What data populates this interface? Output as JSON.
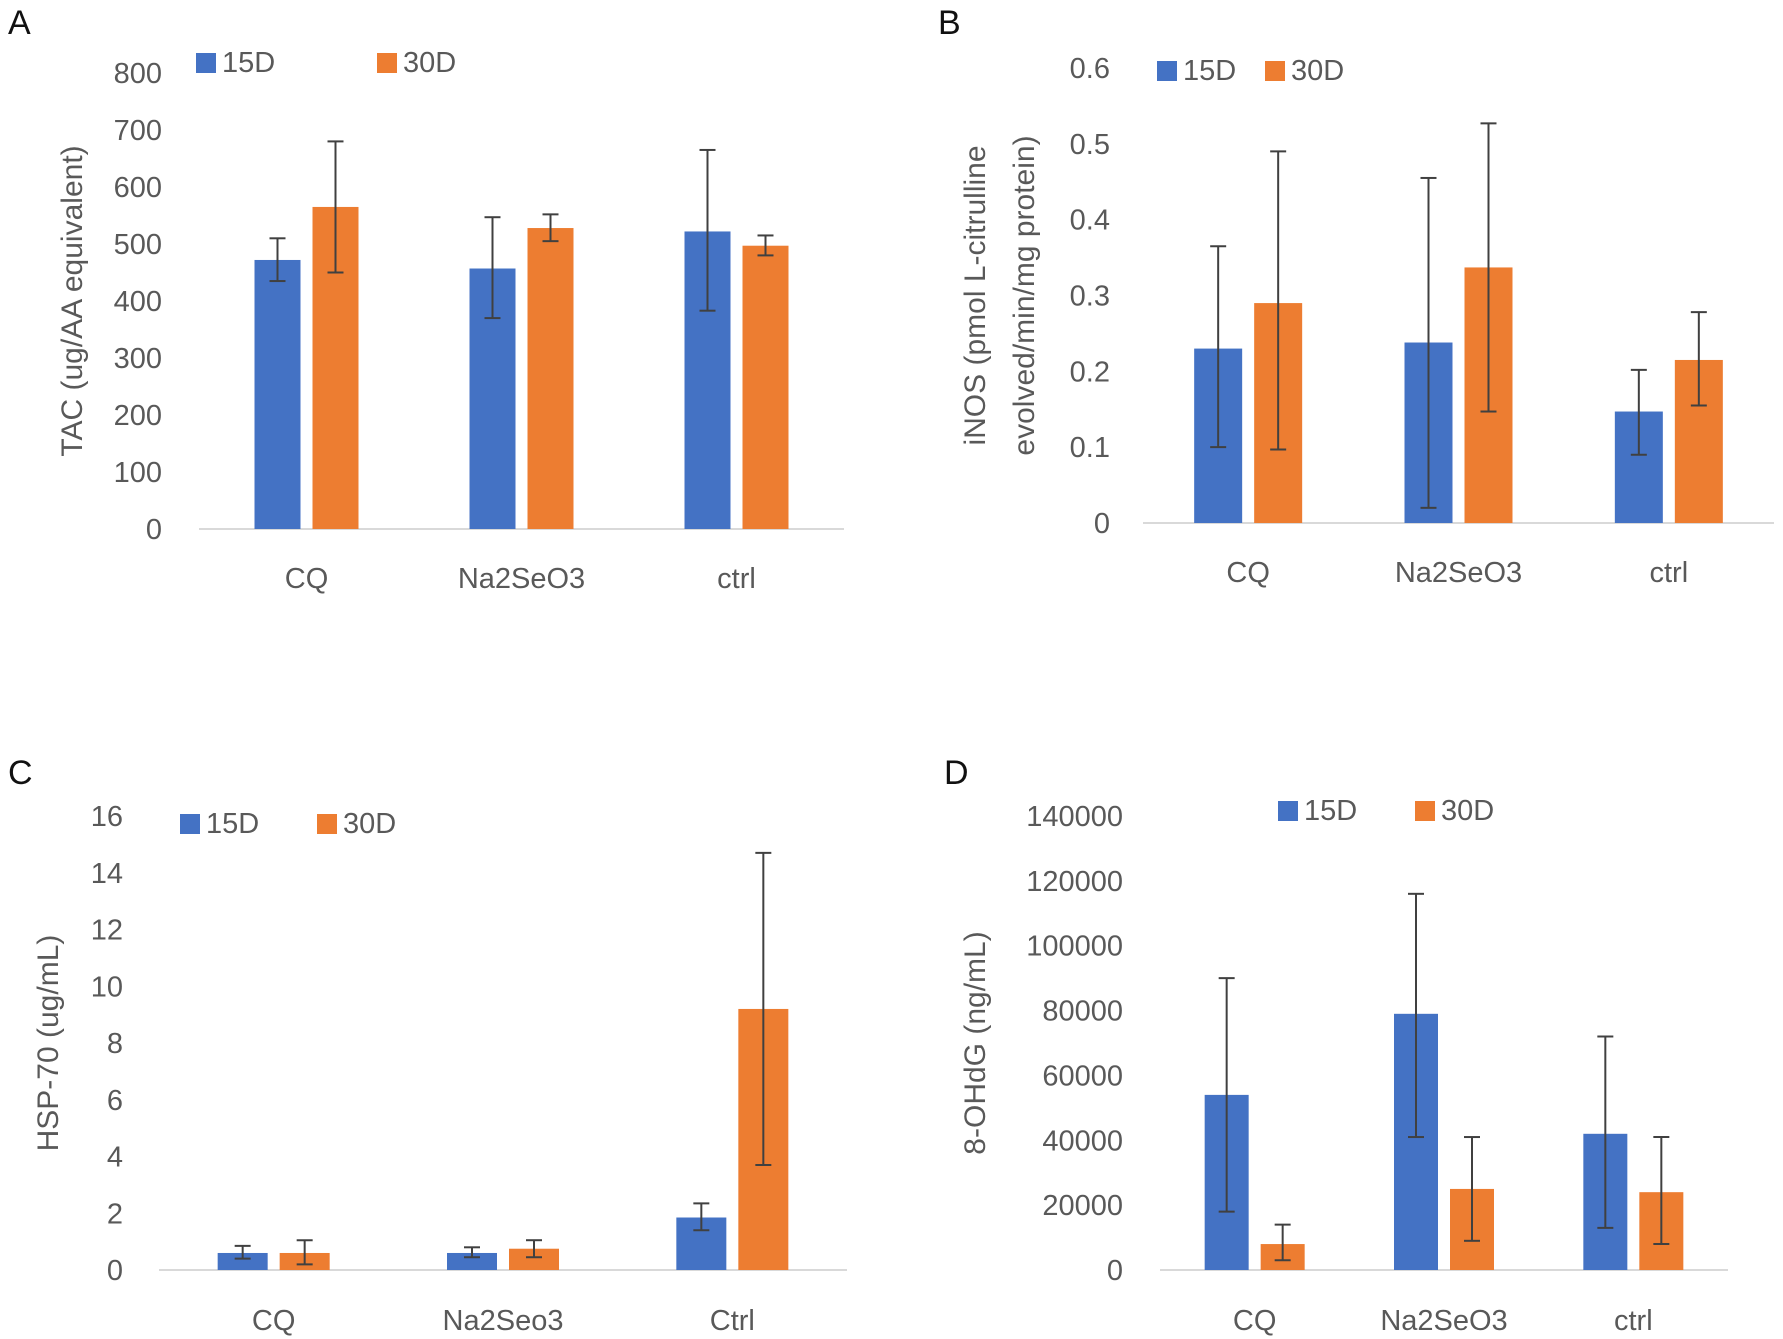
{
  "colors": {
    "15D": "#4472C4",
    "30D": "#ED7D31",
    "axis": "#D9D9D9",
    "text": "#595959",
    "error": "#404040"
  },
  "chart_data": [
    {
      "panel": "A",
      "type": "bar",
      "categories": [
        "CQ",
        "Na2SeO3",
        "ctrl"
      ],
      "ylabel": [
        "TAC (ug/AA equivalent)"
      ],
      "ylim": [
        0,
        800
      ],
      "yticks": [
        0,
        100,
        200,
        300,
        400,
        500,
        600,
        700,
        800
      ],
      "tick_labels": [
        "0",
        "100",
        "200",
        "300",
        "400",
        "500",
        "600",
        "700",
        "800"
      ],
      "legend": "top-left",
      "series": [
        {
          "name": "15D",
          "values": [
            472,
            457,
            522
          ],
          "err_low": [
            435,
            370,
            383
          ],
          "err_high": [
            510,
            547,
            665
          ]
        },
        {
          "name": "30D",
          "values": [
            565,
            528,
            497
          ],
          "err_low": [
            450,
            505,
            480
          ],
          "err_high": [
            680,
            552,
            515
          ]
        }
      ]
    },
    {
      "panel": "B",
      "type": "bar",
      "categories": [
        "CQ",
        "Na2SeO3",
        "ctrl"
      ],
      "ylabel": [
        "iNOS (pmol L-citrulline",
        "evolved/min/mg protein)"
      ],
      "ylim": [
        0,
        0.6
      ],
      "yticks": [
        0,
        0.1,
        0.2,
        0.3,
        0.4,
        0.5,
        0.6
      ],
      "tick_labels": [
        "0",
        "0.1",
        "0.2",
        "0.3",
        "0.4",
        "0.5",
        "0.6"
      ],
      "legend": "top-left",
      "series": [
        {
          "name": "15D",
          "values": [
            0.23,
            0.238,
            0.147
          ],
          "err_low": [
            0.1,
            0.02,
            0.09
          ],
          "err_high": [
            0.365,
            0.455,
            0.202
          ]
        },
        {
          "name": "30D",
          "values": [
            0.29,
            0.337,
            0.215
          ],
          "err_low": [
            0.097,
            0.147,
            0.155
          ],
          "err_high": [
            0.49,
            0.527,
            0.278
          ]
        }
      ]
    },
    {
      "panel": "C",
      "type": "bar",
      "categories": [
        "CQ",
        "Na2Seo3",
        "Ctrl"
      ],
      "ylabel": [
        "HSP-70 (ug/mL)"
      ],
      "ylim": [
        0,
        16
      ],
      "yticks": [
        0,
        2,
        4,
        6,
        8,
        10,
        12,
        14,
        16
      ],
      "tick_labels": [
        "0",
        "2",
        "4",
        "6",
        "8",
        "10",
        "12",
        "14",
        "16"
      ],
      "legend": "top-left",
      "series": [
        {
          "name": "15D",
          "values": [
            0.6,
            0.6,
            1.85
          ],
          "err_low": [
            0.4,
            0.45,
            1.4
          ],
          "err_high": [
            0.85,
            0.8,
            2.35
          ]
        },
        {
          "name": "30D",
          "values": [
            0.6,
            0.75,
            9.2
          ],
          "err_low": [
            0.2,
            0.45,
            3.7
          ],
          "err_high": [
            1.05,
            1.05,
            14.7
          ]
        }
      ]
    },
    {
      "panel": "D",
      "type": "bar",
      "categories": [
        "CQ",
        "Na2SeO3",
        "ctrl"
      ],
      "ylabel": [
        "8-OHdG (ng/mL)"
      ],
      "ylim": [
        0,
        140000
      ],
      "yticks": [
        0,
        20000,
        40000,
        60000,
        80000,
        100000,
        120000,
        140000
      ],
      "tick_labels": [
        "0",
        "20000",
        "40000",
        "60000",
        "80000",
        "100000",
        "120000",
        "140000"
      ],
      "legend": "top-center",
      "series": [
        {
          "name": "15D",
          "values": [
            54000,
            79000,
            42000
          ],
          "err_low": [
            18000,
            41000,
            13000
          ],
          "err_high": [
            90000,
            116000,
            72000
          ]
        },
        {
          "name": "30D",
          "values": [
            8000,
            25000,
            24000
          ],
          "err_low": [
            3000,
            9000,
            8000
          ],
          "err_high": [
            14000,
            41000,
            41000
          ]
        }
      ]
    }
  ]
}
